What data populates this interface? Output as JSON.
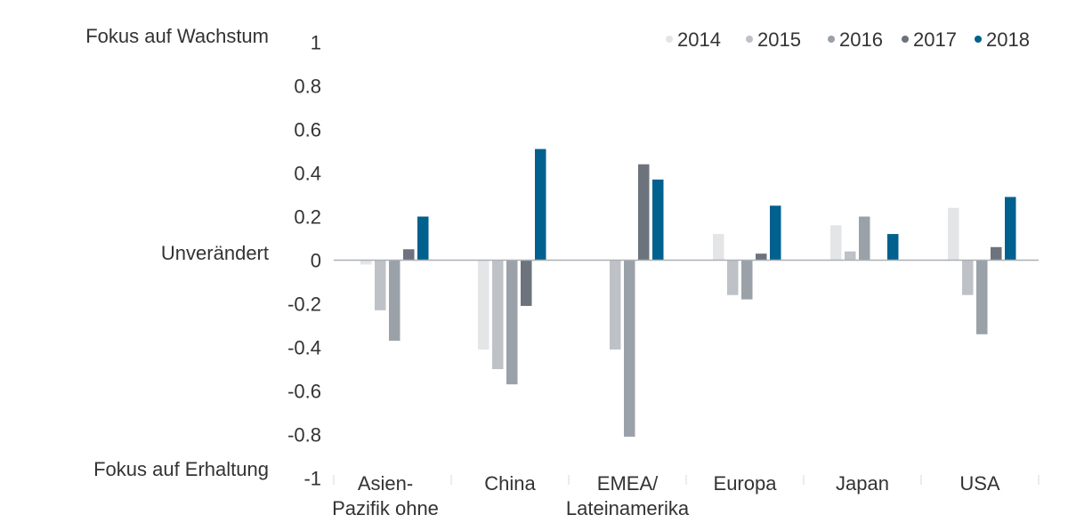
{
  "chart_data": {
    "type": "bar",
    "categories": [
      [
        "Asien-",
        "Pazifik ohne"
      ],
      [
        "China"
      ],
      [
        "EMEA/",
        "Lateinamerika"
      ],
      [
        "Europa"
      ],
      [
        "Japan"
      ],
      [
        "USA"
      ]
    ],
    "series": [
      {
        "name": "2014",
        "color": "#e4e5e6",
        "values": [
          -0.02,
          -0.41,
          0.0,
          0.12,
          0.16,
          0.24
        ]
      },
      {
        "name": "2015",
        "color": "#bec2c7",
        "values": [
          -0.23,
          -0.5,
          -0.41,
          -0.16,
          0.04,
          -0.16
        ]
      },
      {
        "name": "2016",
        "color": "#9aa1a9",
        "values": [
          -0.37,
          -0.57,
          -0.81,
          -0.18,
          0.2,
          -0.34
        ]
      },
      {
        "name": "2017",
        "color": "#6c737c",
        "values": [
          0.05,
          -0.21,
          0.44,
          0.03,
          0.0,
          0.06
        ]
      },
      {
        "name": "2018",
        "color": "#00608e",
        "values": [
          0.2,
          0.51,
          0.37,
          0.25,
          0.12,
          0.29
        ]
      }
    ],
    "ylim": [
      -1,
      1
    ],
    "yticks": [
      "1",
      "0.8",
      "0.6",
      "0.4",
      "0.2",
      "0",
      "-0.2",
      "-0.4",
      "-0.6",
      "-0.8",
      "-1"
    ],
    "ytick_values": [
      1,
      0.8,
      0.6,
      0.4,
      0.2,
      0,
      -0.2,
      -0.4,
      -0.6,
      -0.8,
      -1
    ],
    "annotations": {
      "top": "Fokus auf Wachstum",
      "middle": "Unverändert",
      "bottom": "Fokus auf Erhaltung"
    },
    "legend_position": "top-right",
    "grid": false,
    "axis_color": "#aab0b5"
  }
}
